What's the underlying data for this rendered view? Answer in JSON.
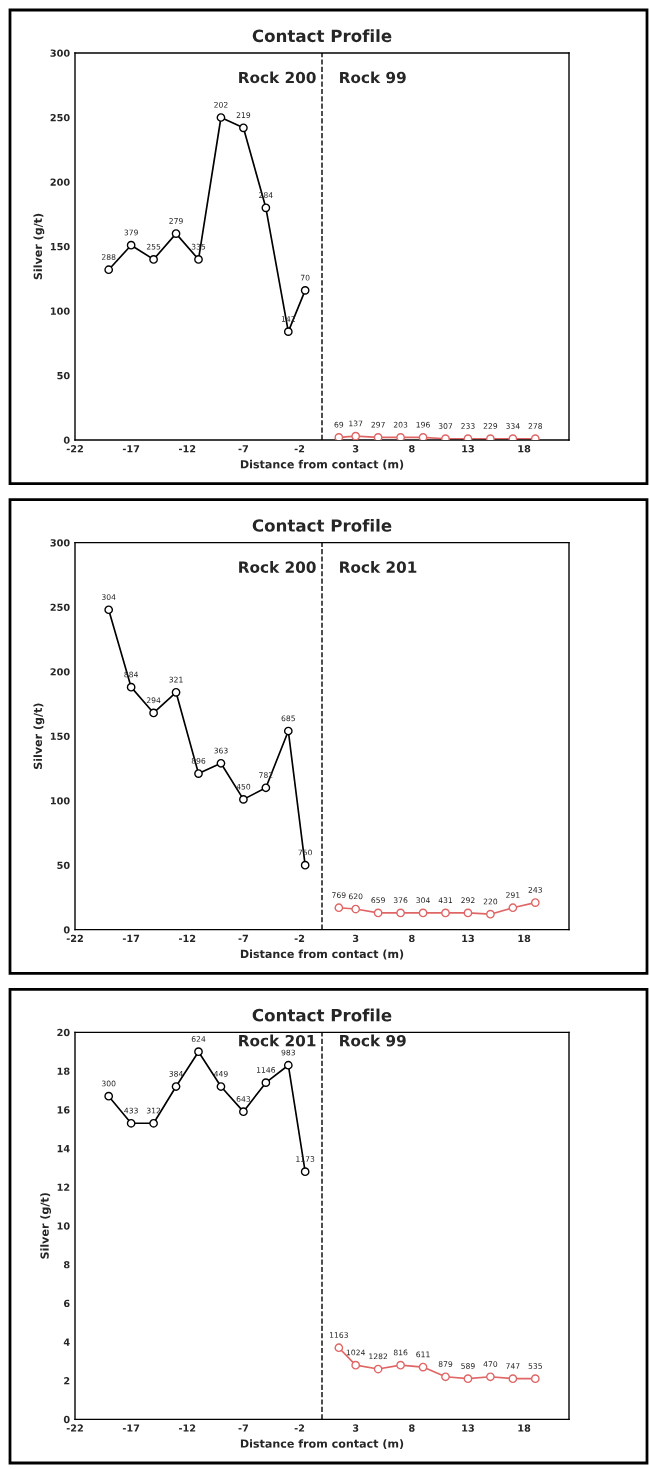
{
  "chart_data": [
    {
      "type": "line",
      "title": "Contact Profile",
      "xlabel": "Distance from contact (m)",
      "ylabel": "Silver (g/t)",
      "xlim": [
        -22,
        22
      ],
      "xticks": [
        -22,
        -17,
        -12,
        -7,
        -2,
        3,
        8,
        13,
        18
      ],
      "ylim": [
        0,
        300
      ],
      "yticks": [
        0,
        50,
        100,
        150,
        200,
        250,
        300
      ],
      "grid": false,
      "legend": false,
      "marker": "circle",
      "line_style": "solid",
      "ref_lines": [
        {
          "axis": "x",
          "value": 0,
          "color": "#000000",
          "line_style": "dashed"
        }
      ],
      "annotations": [
        {
          "text": "Rock 200",
          "x": 0,
          "y": 280
        },
        {
          "text": "Rock 99",
          "x": 0,
          "y": 280
        },
        {
          "text": "288",
          "x": -19,
          "y": 132
        },
        {
          "text": "379",
          "x": -17,
          "y": 151
        },
        {
          "text": "255",
          "x": -15,
          "y": 140
        },
        {
          "text": "279",
          "x": -13,
          "y": 160
        },
        {
          "text": "335",
          "x": -11,
          "y": 140
        },
        {
          "text": "202",
          "x": -9,
          "y": 250
        },
        {
          "text": "219",
          "x": -7,
          "y": 242
        },
        {
          "text": "284",
          "x": -5,
          "y": 180
        },
        {
          "text": "142",
          "x": -3,
          "y": 84
        },
        {
          "text": "70",
          "x": -1.5,
          "y": 116
        },
        {
          "text": "69",
          "x": 1.5,
          "y": 2
        },
        {
          "text": "137",
          "x": 3,
          "y": 3
        },
        {
          "text": "297",
          "x": 5,
          "y": 2
        },
        {
          "text": "203",
          "x": 7,
          "y": 2
        },
        {
          "text": "196",
          "x": 9,
          "y": 2
        },
        {
          "text": "307",
          "x": 11,
          "y": 1
        },
        {
          "text": "233",
          "x": 13,
          "y": 1
        },
        {
          "text": "229",
          "x": 15,
          "y": 1
        },
        {
          "text": "334",
          "x": 17,
          "y": 1
        },
        {
          "text": "278",
          "x": 19,
          "y": 1
        }
      ],
      "series": [
        {
          "color": "#000000",
          "x": [
            -19,
            -17,
            -15,
            -13,
            -11,
            -9,
            -7,
            -5,
            -3,
            -1.5
          ],
          "values": [
            132,
            151,
            140,
            160,
            140,
            250,
            242,
            180,
            84,
            116
          ]
        },
        {
          "color": "#e06666",
          "x": [
            1.5,
            3,
            5,
            7,
            9,
            11,
            13,
            15,
            17,
            19
          ],
          "values": [
            2,
            3,
            2,
            2,
            2,
            1,
            1,
            1,
            1,
            1
          ]
        }
      ]
    },
    {
      "type": "line",
      "title": "Contact Profile",
      "xlabel": "Distance from contact (m)",
      "ylabel": "Silver (g/t)",
      "xlim": [
        -22,
        22
      ],
      "xticks": [
        -22,
        -17,
        -12,
        -7,
        -2,
        3,
        8,
        13,
        18
      ],
      "ylim": [
        0,
        300
      ],
      "yticks": [
        0,
        50,
        100,
        150,
        200,
        250,
        300
      ],
      "grid": false,
      "legend": false,
      "marker": "circle",
      "line_style": "solid",
      "ref_lines": [
        {
          "axis": "x",
          "value": 0,
          "color": "#000000",
          "line_style": "dashed"
        }
      ],
      "annotations": [
        {
          "text": "Rock 200",
          "x": 0,
          "y": 280
        },
        {
          "text": "Rock 201",
          "x": 0,
          "y": 280
        },
        {
          "text": "304",
          "x": -19,
          "y": 248
        },
        {
          "text": "884",
          "x": -17,
          "y": 188
        },
        {
          "text": "294",
          "x": -15,
          "y": 168
        },
        {
          "text": "321",
          "x": -13,
          "y": 184
        },
        {
          "text": "896",
          "x": -11,
          "y": 121
        },
        {
          "text": "363",
          "x": -9,
          "y": 129
        },
        {
          "text": "450",
          "x": -7,
          "y": 101
        },
        {
          "text": "782",
          "x": -5,
          "y": 110
        },
        {
          "text": "685",
          "x": -3,
          "y": 154
        },
        {
          "text": "750",
          "x": -1.5,
          "y": 50
        },
        {
          "text": "769",
          "x": 1.5,
          "y": 17
        },
        {
          "text": "620",
          "x": 3,
          "y": 16
        },
        {
          "text": "659",
          "x": 5,
          "y": 13
        },
        {
          "text": "376",
          "x": 7,
          "y": 13
        },
        {
          "text": "304",
          "x": 9,
          "y": 13
        },
        {
          "text": "431",
          "x": 11,
          "y": 13
        },
        {
          "text": "292",
          "x": 13,
          "y": 13
        },
        {
          "text": "220",
          "x": 15,
          "y": 12
        },
        {
          "text": "291",
          "x": 17,
          "y": 17
        },
        {
          "text": "243",
          "x": 19,
          "y": 21
        }
      ],
      "series": [
        {
          "color": "#000000",
          "x": [
            -19,
            -17,
            -15,
            -13,
            -11,
            -9,
            -7,
            -5,
            -3,
            -1.5
          ],
          "values": [
            248,
            188,
            168,
            184,
            121,
            129,
            101,
            110,
            154,
            50
          ]
        },
        {
          "color": "#e06666",
          "x": [
            1.5,
            3,
            5,
            7,
            9,
            11,
            13,
            15,
            17,
            19
          ],
          "values": [
            17,
            16,
            13,
            13,
            13,
            13,
            13,
            12,
            17,
            21
          ]
        }
      ]
    },
    {
      "type": "line",
      "title": "Contact Profile",
      "xlabel": "Distance from contact (m)",
      "ylabel": "Silver (g/t)",
      "xlim": [
        -22,
        22
      ],
      "xticks": [
        -22,
        -17,
        -12,
        -7,
        -2,
        3,
        8,
        13,
        18
      ],
      "ylim": [
        0,
        20
      ],
      "yticks": [
        0,
        2,
        4,
        6,
        8,
        10,
        12,
        14,
        16,
        18,
        20
      ],
      "grid": false,
      "legend": false,
      "marker": "circle",
      "line_style": "solid",
      "ref_lines": [
        {
          "axis": "x",
          "value": 0,
          "color": "#000000",
          "line_style": "dashed"
        }
      ],
      "annotations": [
        {
          "text": "Rock 201",
          "x": 0,
          "y": 19.5
        },
        {
          "text": "Rock 99",
          "x": 0,
          "y": 19.5
        },
        {
          "text": "300",
          "x": -19,
          "y": 16.7
        },
        {
          "text": "433",
          "x": -17,
          "y": 15.3
        },
        {
          "text": "312",
          "x": -15,
          "y": 15.3
        },
        {
          "text": "384",
          "x": -13,
          "y": 17.2
        },
        {
          "text": "624",
          "x": -11,
          "y": 19.0
        },
        {
          "text": "449",
          "x": -9,
          "y": 17.2
        },
        {
          "text": "643",
          "x": -7,
          "y": 15.9
        },
        {
          "text": "1146",
          "x": -5,
          "y": 17.4
        },
        {
          "text": "983",
          "x": -3,
          "y": 18.3
        },
        {
          "text": "1173",
          "x": -1.5,
          "y": 12.8
        },
        {
          "text": "1163",
          "x": 1.5,
          "y": 3.7
        },
        {
          "text": "1024",
          "x": 3,
          "y": 2.8
        },
        {
          "text": "1282",
          "x": 5,
          "y": 2.6
        },
        {
          "text": "816",
          "x": 7,
          "y": 2.8
        },
        {
          "text": "611",
          "x": 9,
          "y": 2.7
        },
        {
          "text": "879",
          "x": 11,
          "y": 2.2
        },
        {
          "text": "589",
          "x": 13,
          "y": 2.1
        },
        {
          "text": "470",
          "x": 15,
          "y": 2.2
        },
        {
          "text": "747",
          "x": 17,
          "y": 2.1
        },
        {
          "text": "535",
          "x": 19,
          "y": 2.1
        }
      ],
      "series": [
        {
          "color": "#000000",
          "x": [
            -19,
            -17,
            -15,
            -13,
            -11,
            -9,
            -7,
            -5,
            -3,
            -1.5
          ],
          "values": [
            16.7,
            15.3,
            15.3,
            17.2,
            19.0,
            17.2,
            15.9,
            17.4,
            18.3,
            12.8
          ]
        },
        {
          "color": "#e06666",
          "x": [
            1.5,
            3,
            5,
            7,
            9,
            11,
            13,
            15,
            17,
            19
          ],
          "values": [
            3.7,
            2.8,
            2.6,
            2.8,
            2.7,
            2.2,
            2.1,
            2.2,
            2.1,
            2.1
          ]
        }
      ]
    }
  ]
}
